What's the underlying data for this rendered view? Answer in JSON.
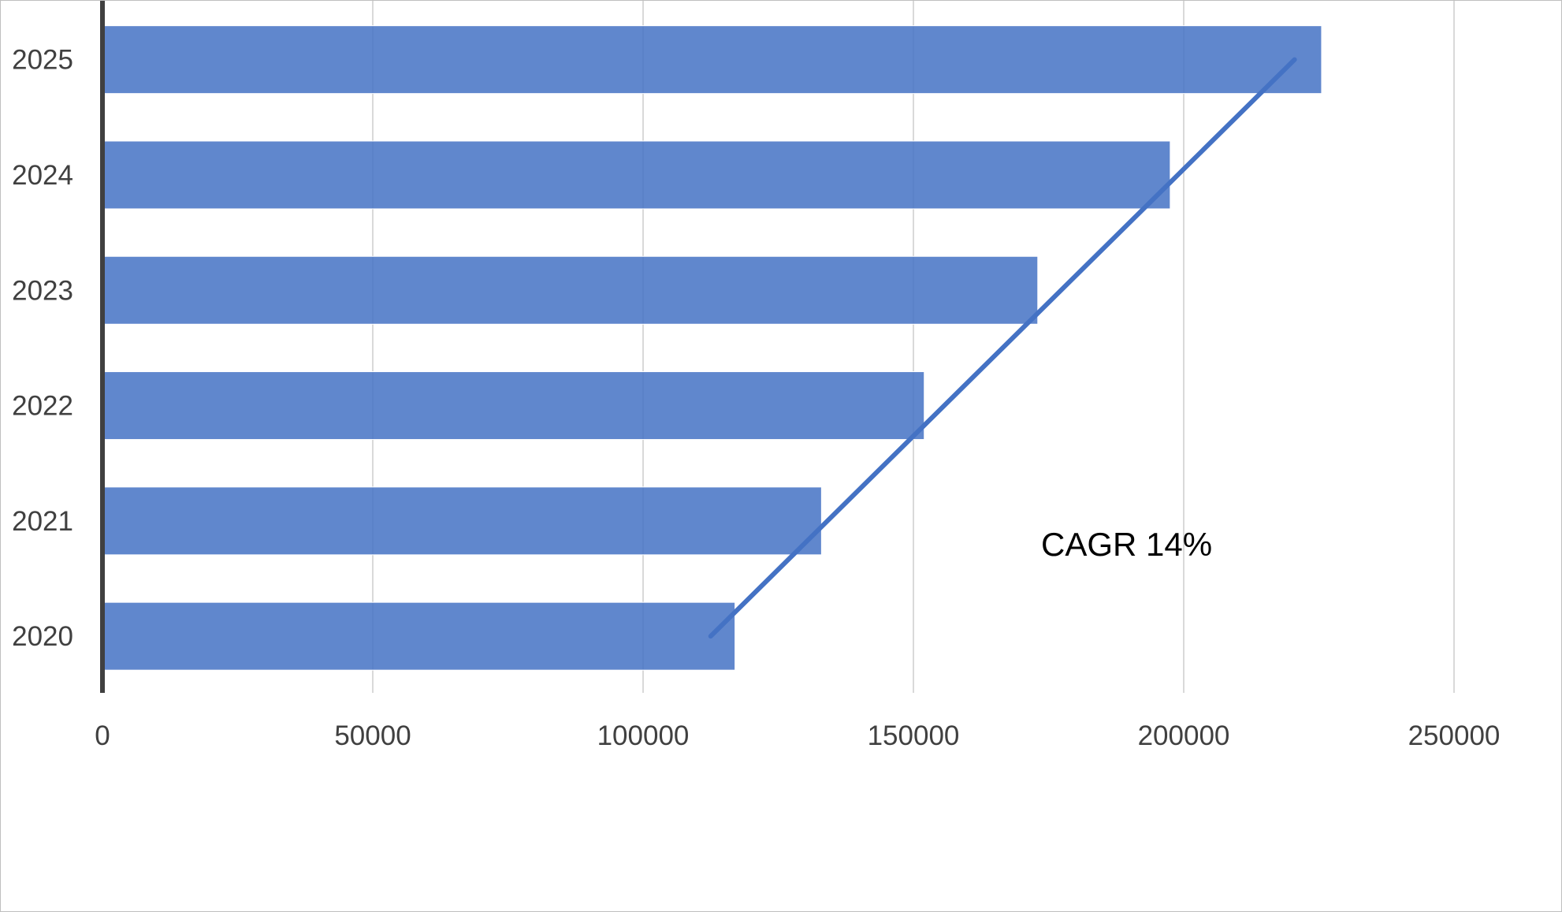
{
  "chart_data": {
    "type": "bar",
    "orientation": "horizontal",
    "categories": [
      "2020",
      "2021",
      "2022",
      "2023",
      "2024",
      "2025"
    ],
    "values": [
      117000,
      133000,
      152000,
      173000,
      197500,
      225500
    ],
    "title": "",
    "xlabel": "",
    "ylabel": "",
    "xlim": [
      0,
      250000
    ],
    "xticks": [
      "0",
      "50000",
      "100000",
      "150000",
      "200000",
      "250000"
    ],
    "grid": "vertical",
    "legend": "none",
    "bar_color": "#4472C4",
    "trend_line": {
      "from": {
        "category": "2020",
        "value": 112500
      },
      "to": {
        "category": "2025",
        "value": 220500
      },
      "color": "#4472C4"
    },
    "annotation": "CAGR 14%"
  }
}
